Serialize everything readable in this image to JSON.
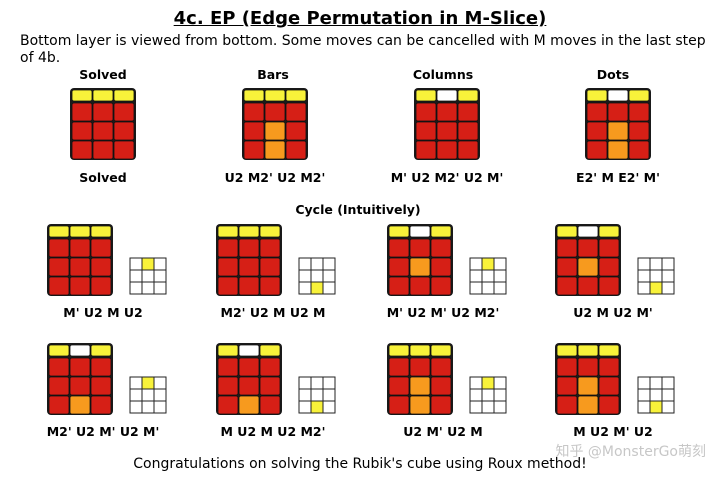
{
  "title": "4c. EP (Edge Permutation in M-Slice)",
  "intro": "Bottom layer is viewed from bottom. Some moves can be cancelled with M moves in the last step of 4b.",
  "colors": {
    "red": "#d61f16",
    "yellow": "#f8f23a",
    "orange": "#f79a1e",
    "white": "#ffffff",
    "outline": "#111111",
    "grid_line": "#222222"
  },
  "top_section": {
    "cases": [
      {
        "header": "Solved",
        "label": "Solved",
        "top_center": "yellow",
        "mid_center": "red",
        "bottom_center": "red"
      },
      {
        "header": "Bars",
        "label": "U2 M2' U2 M2'",
        "top_center": "yellow",
        "mid_center": "orange",
        "bottom_center": "orange"
      },
      {
        "header": "Columns",
        "label": "M' U2 M2' U2 M'",
        "top_center": "white",
        "mid_center": "red",
        "bottom_center": "red"
      },
      {
        "header": "Dots",
        "label": "E2' M E2' M'",
        "top_center": "white",
        "mid_center": "orange",
        "bottom_center": "orange"
      }
    ]
  },
  "cycle_section": {
    "header": "Cycle (Intuitively)",
    "cases": [
      {
        "label": "M' U2 M U2",
        "top_center": "yellow",
        "mid_center": "red",
        "bottom_center": "red",
        "grid_top": "yellow",
        "grid_bottom": "white"
      },
      {
        "label": "M2' U2 M U2 M",
        "top_center": "yellow",
        "mid_center": "red",
        "bottom_center": "red",
        "grid_top": "white",
        "grid_bottom": "yellow"
      },
      {
        "label": "M' U2 M' U2 M2'",
        "top_center": "white",
        "mid_center": "orange",
        "bottom_center": "red",
        "grid_top": "yellow",
        "grid_bottom": "white"
      },
      {
        "label": "U2 M U2 M'",
        "top_center": "white",
        "mid_center": "orange",
        "bottom_center": "red",
        "grid_top": "white",
        "grid_bottom": "yellow"
      },
      {
        "label": "M2' U2 M' U2 M'",
        "top_center": "white",
        "mid_center": "red",
        "bottom_center": "orange",
        "grid_top": "yellow",
        "grid_bottom": "white"
      },
      {
        "label": "M U2 M U2 M2'",
        "top_center": "white",
        "mid_center": "red",
        "bottom_center": "orange",
        "grid_top": "white",
        "grid_bottom": "yellow"
      },
      {
        "label": "U2 M' U2 M",
        "top_center": "yellow",
        "mid_center": "orange",
        "bottom_center": "orange",
        "grid_top": "yellow",
        "grid_bottom": "white"
      },
      {
        "label": "M U2 M' U2",
        "top_center": "yellow",
        "mid_center": "orange",
        "bottom_center": "orange",
        "grid_top": "white",
        "grid_bottom": "yellow"
      }
    ]
  },
  "footer": "Congratulations on solving the Rubik's cube using Roux method!",
  "watermark": "知乎 @MonsterGo萌刻"
}
